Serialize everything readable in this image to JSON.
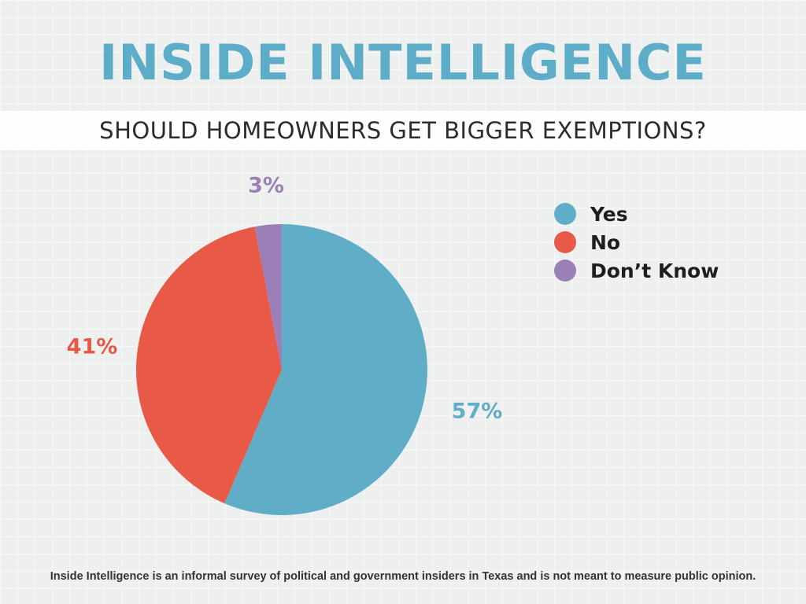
{
  "header": {
    "brand_title": "INSIDE INTELLIGENCE",
    "question": "SHOULD HOMEOWNERS GET BIGGER EXEMPTIONS?"
  },
  "chart_data": {
    "type": "pie",
    "title": "SHOULD HOMEOWNERS GET BIGGER EXEMPTIONS?",
    "categories": [
      "Yes",
      "No",
      "Don’t Know"
    ],
    "values": [
      57,
      41,
      3
    ],
    "value_labels": [
      "57%",
      "41%",
      "3%"
    ],
    "colors": [
      "#60adc8",
      "#e85a47",
      "#9a80b6"
    ],
    "start": "12 o'clock",
    "direction": "clockwise",
    "legend": {
      "position": "top-right",
      "items": [
        {
          "label": "Yes",
          "color": "#60adc8"
        },
        {
          "label": "No",
          "color": "#e85a47"
        },
        {
          "label": "Don’t Know",
          "color": "#9a80b6"
        }
      ]
    }
  },
  "footnote": "Inside Intelligence is an informal survey of political and government insiders in Texas and is not meant to measure public opinion."
}
